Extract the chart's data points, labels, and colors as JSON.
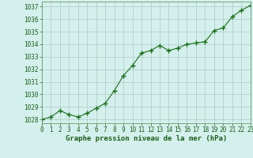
{
  "x": [
    0,
    1,
    2,
    3,
    4,
    5,
    6,
    7,
    8,
    9,
    10,
    11,
    12,
    13,
    14,
    15,
    16,
    17,
    18,
    19,
    20,
    21,
    22,
    23
  ],
  "y": [
    1028.0,
    1028.2,
    1028.7,
    1028.4,
    1028.2,
    1028.5,
    1028.9,
    1029.3,
    1030.3,
    1031.5,
    1032.3,
    1033.3,
    1033.5,
    1033.9,
    1033.5,
    1033.7,
    1034.0,
    1034.1,
    1034.2,
    1035.1,
    1035.3,
    1036.2,
    1036.7,
    1037.1
  ],
  "line_color": "#1a6e1a",
  "marker": "+",
  "marker_size": 4,
  "bg_color": "#d4f0ec",
  "grid_color": "#b0c8c4",
  "xlabel": "Graphe pression niveau de la mer (hPa)",
  "xlabel_color": "#1a5e1a",
  "ylabel_ticks": [
    1028,
    1029,
    1030,
    1031,
    1032,
    1033,
    1034,
    1035,
    1036,
    1037
  ],
  "xlim": [
    0,
    23
  ],
  "ylim": [
    1027.7,
    1037.4
  ],
  "tick_color": "#1a5e1a",
  "spine_color": "#6a9a6a",
  "font_family": "monospace",
  "tick_fontsize": 5.5,
  "xlabel_fontsize": 6.5
}
